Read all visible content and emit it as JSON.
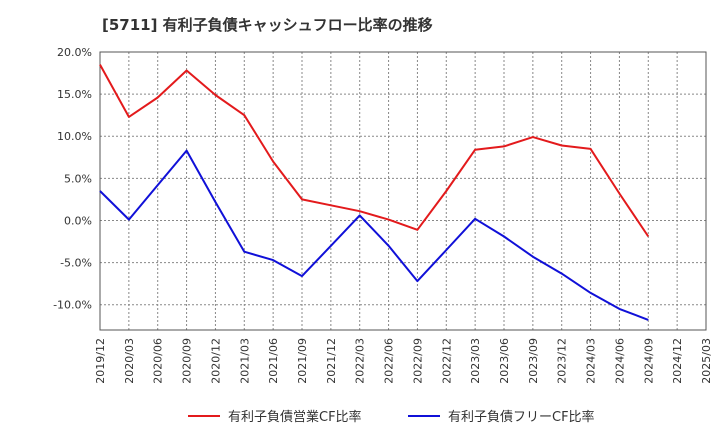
{
  "chart_data": {
    "type": "line",
    "title": "[5711]  有利子負債キャッシュフロー比率の推移",
    "xlabel": "",
    "ylabel": "",
    "categories": [
      "2019/12",
      "2020/03",
      "2020/06",
      "2020/09",
      "2020/12",
      "2021/03",
      "2021/06",
      "2021/09",
      "2021/12",
      "2022/03",
      "2022/06",
      "2022/09",
      "2022/12",
      "2023/03",
      "2023/06",
      "2023/09",
      "2023/12",
      "2024/03",
      "2024/06",
      "2024/09",
      "2024/12",
      "2025/03"
    ],
    "y_tick_labels": [
      "20.0%",
      "15.0%",
      "10.0%",
      "5.0%",
      "0.0%",
      "-5.0%",
      "-10.0%"
    ],
    "y_ticks": [
      20,
      15,
      10,
      5,
      0,
      -5,
      -10
    ],
    "ylim": [
      -13,
      20
    ],
    "grid": "dotted vertical and horizontal",
    "legend_position": "bottom",
    "series": [
      {
        "name": "有利子負債営業CF比率",
        "color": "#e31a1c",
        "values": [
          18.5,
          12.3,
          14.6,
          17.8,
          14.9,
          12.5,
          7.0,
          2.5,
          1.8,
          1.1,
          0.1,
          -1.1,
          3.5,
          8.4,
          8.8,
          9.9,
          8.9,
          8.5,
          3.2,
          -1.9,
          null,
          null
        ]
      },
      {
        "name": "有利子負債フリーCF比率",
        "color": "#1010d8",
        "values": [
          3.5,
          0.1,
          4.2,
          8.3,
          2.2,
          -3.7,
          -4.7,
          -6.6,
          -3.0,
          0.6,
          -3.0,
          -7.2,
          -3.5,
          0.2,
          -1.9,
          -4.3,
          -6.3,
          -8.6,
          -10.5,
          -11.8,
          null,
          null
        ]
      }
    ]
  }
}
